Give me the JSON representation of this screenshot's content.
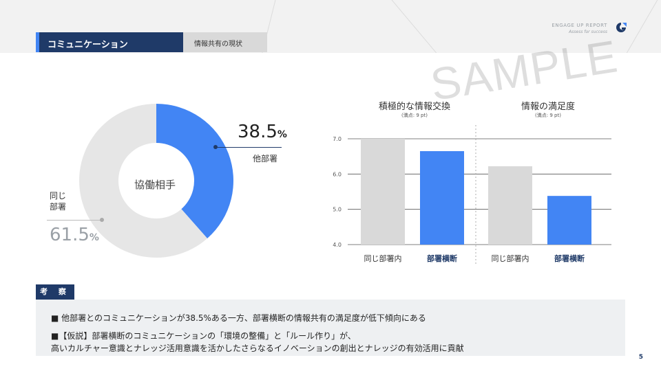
{
  "header": {
    "brand_name": "ENGAGE UP REPORT",
    "brand_tagline": "Assess for success",
    "title": "コミュニケーション",
    "subtitle": "情報共有の現状"
  },
  "watermark": "SAMPLE",
  "donut": {
    "center_label": "協働相手",
    "other_value": "38.5",
    "other_label": "他部署",
    "same_value": "61.5",
    "same_label_line1": "同じ",
    "same_label_line2": "部署",
    "unit": "%"
  },
  "bar_panels": {
    "left_title": "積極的な情報交換",
    "left_note": "(満点: 9 pt)",
    "right_title": "情報の満足度",
    "right_note": "(満点: 9 pt)"
  },
  "colors": {
    "navy": "#1f3a68",
    "blue": "#4285f4",
    "gray_bar": "#d9d9d9",
    "donut_gray": "#e6e6e6"
  },
  "consideration": {
    "tab_label": "考 察",
    "line1": "■  他部署とのコミュニケーションが38.5%ある一方、部署横断の情報共有の満足度が低下傾向にある",
    "line2": "■【仮説】部署横断のコミュニケーションの「環境の整備」と「ルール作り」が、",
    "line3": "高いカルチャー意識とナレッジ活用意識を活かしたさらなるイノベーションの創出とナレッジの有効活用に貢献"
  },
  "page_number": "5",
  "chart_data": [
    {
      "type": "pie",
      "title": "協働相手",
      "labels": [
        "他部署",
        "同じ部署"
      ],
      "values": [
        38.5,
        61.5
      ],
      "colors": [
        "#4285f4",
        "#e6e6e6"
      ]
    },
    {
      "type": "bar",
      "ylim": [
        4.0,
        7.0
      ],
      "yticks": [
        "4.0",
        "5.0",
        "6.0",
        "7.0"
      ],
      "grid": true,
      "groups": [
        {
          "title": "積極的な情報交換",
          "categories": [
            "同じ部署内",
            "部署横断"
          ],
          "values": [
            7.0,
            6.65
          ],
          "colors": [
            "#d9d9d9",
            "#4285f4"
          ]
        },
        {
          "title": "情報の満足度",
          "categories": [
            "同じ部署内",
            "部署横断"
          ],
          "values": [
            6.22,
            5.38
          ],
          "colors": [
            "#d9d9d9",
            "#4285f4"
          ]
        }
      ]
    }
  ]
}
